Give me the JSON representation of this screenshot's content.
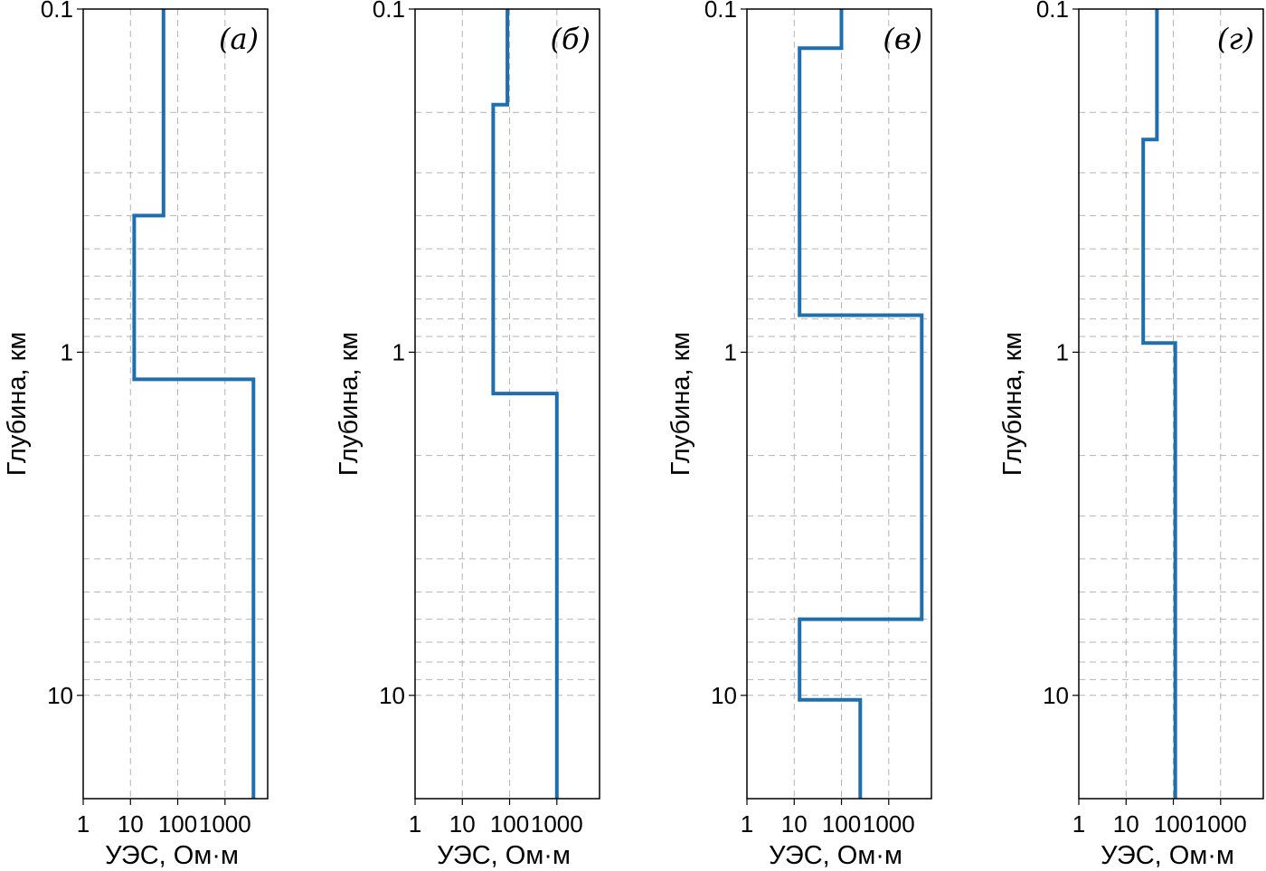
{
  "colors": {
    "profile": "#1f6fae",
    "grid": "#b3b3b3",
    "frame": "#000000"
  },
  "chart_data": [
    {
      "type": "line",
      "panel_label": "(а)",
      "xlabel": "УЭС, Ом·м",
      "ylabel": "Глубина, км",
      "x_scale": "log",
      "y_scale": "log",
      "y_inverted": true,
      "xlim": [
        1,
        8000
      ],
      "ylim": [
        0.1,
        20
      ],
      "x_ticks": [
        "1",
        "10",
        "100",
        "1000"
      ],
      "y_ticks": [
        "0.1",
        "1",
        "10"
      ],
      "grid": true,
      "layers": [
        {
          "resistivity": 50,
          "top": 0.1,
          "bottom": 0.4
        },
        {
          "resistivity": 12,
          "top": 0.4,
          "bottom": 1.2
        },
        {
          "resistivity": 4000,
          "top": 1.2,
          "bottom": 20
        }
      ]
    },
    {
      "type": "line",
      "panel_label": "(б)",
      "xlabel": "УЭС, Ом·м",
      "ylabel": "Глубина, км",
      "x_scale": "log",
      "y_scale": "log",
      "y_inverted": true,
      "xlim": [
        1,
        8000
      ],
      "ylim": [
        0.1,
        20
      ],
      "x_ticks": [
        "1",
        "10",
        "100",
        "1000"
      ],
      "y_ticks": [
        "0.1",
        "1",
        "10"
      ],
      "grid": true,
      "layers": [
        {
          "resistivity": 90,
          "top": 0.1,
          "bottom": 0.19
        },
        {
          "resistivity": 45,
          "top": 0.19,
          "bottom": 1.32
        },
        {
          "resistivity": 1000,
          "top": 1.32,
          "bottom": 20
        }
      ]
    },
    {
      "type": "line",
      "panel_label": "(в)",
      "xlabel": "УЭС, Ом·м",
      "ylabel": "Глубина, км",
      "x_scale": "log",
      "y_scale": "log",
      "y_inverted": true,
      "xlim": [
        1,
        8000
      ],
      "ylim": [
        0.1,
        20
      ],
      "x_ticks": [
        "1",
        "10",
        "100",
        "1000"
      ],
      "y_ticks": [
        "0.1",
        "1",
        "10"
      ],
      "grid": true,
      "layers": [
        {
          "resistivity": 100,
          "top": 0.1,
          "bottom": 0.13
        },
        {
          "resistivity": 13,
          "top": 0.13,
          "bottom": 0.78
        },
        {
          "resistivity": 5000,
          "top": 0.78,
          "bottom": 6
        },
        {
          "resistivity": 13,
          "top": 6,
          "bottom": 10.3
        },
        {
          "resistivity": 250,
          "top": 10.3,
          "bottom": 20
        }
      ]
    },
    {
      "type": "line",
      "panel_label": "(г)",
      "xlabel": "УЭС, Ом·м",
      "ylabel": "Глубина, км",
      "x_scale": "log",
      "y_scale": "log",
      "y_inverted": true,
      "xlim": [
        1,
        8000
      ],
      "ylim": [
        0.1,
        20
      ],
      "x_ticks": [
        "1",
        "10",
        "100",
        "1000"
      ],
      "y_ticks": [
        "0.1",
        "1",
        "10"
      ],
      "grid": true,
      "layers": [
        {
          "resistivity": 45,
          "top": 0.1,
          "bottom": 0.24
        },
        {
          "resistivity": 23,
          "top": 0.24,
          "bottom": 0.94
        },
        {
          "resistivity": 110,
          "top": 0.94,
          "bottom": 20
        }
      ]
    }
  ]
}
